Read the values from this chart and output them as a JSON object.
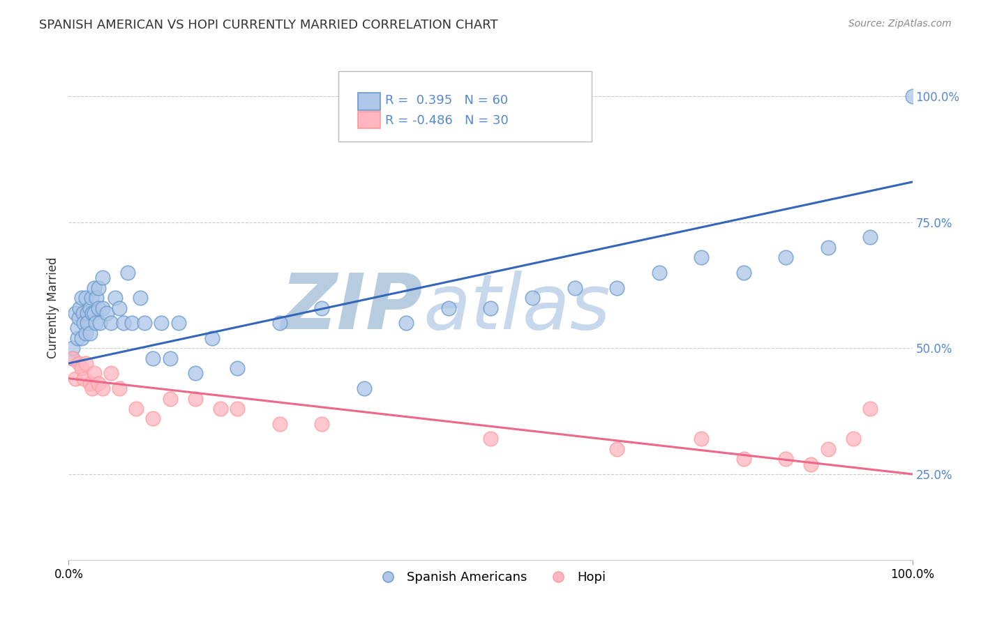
{
  "title": "SPANISH AMERICAN VS HOPI CURRENTLY MARRIED CORRELATION CHART",
  "source": "Source: ZipAtlas.com",
  "ylabel": "Currently Married",
  "right_ytick_labels": [
    "25.0%",
    "50.0%",
    "75.0%",
    "100.0%"
  ],
  "right_ytick_values": [
    0.25,
    0.5,
    0.75,
    1.0
  ],
  "xlim": [
    0.0,
    1.0
  ],
  "ylim": [
    0.08,
    1.08
  ],
  "blue_R": 0.395,
  "blue_N": 60,
  "pink_R": -0.486,
  "pink_N": 30,
  "blue_color": "#6699CC",
  "pink_color": "#FF9999",
  "blue_fill": "#AEC6E8",
  "pink_fill": "#FFB6C1",
  "trend_blue": "#3366BB",
  "trend_pink": "#EE6688",
  "watermark_zip": "ZIP",
  "watermark_atlas": "atlas",
  "watermark_color_zip": "#C8D8EC",
  "watermark_color_atlas": "#C8D8EC",
  "legend_label_blue": "Spanish Americans",
  "legend_label_pink": "Hopi",
  "blue_dots_x": [
    0.005,
    0.005,
    0.008,
    0.01,
    0.01,
    0.012,
    0.013,
    0.015,
    0.015,
    0.017,
    0.018,
    0.02,
    0.02,
    0.022,
    0.022,
    0.025,
    0.025,
    0.027,
    0.028,
    0.03,
    0.03,
    0.032,
    0.033,
    0.035,
    0.035,
    0.037,
    0.04,
    0.04,
    0.045,
    0.05,
    0.055,
    0.06,
    0.065,
    0.07,
    0.075,
    0.085,
    0.09,
    0.1,
    0.11,
    0.12,
    0.13,
    0.15,
    0.17,
    0.2,
    0.25,
    0.3,
    0.35,
    0.4,
    0.45,
    0.5,
    0.55,
    0.6,
    0.65,
    0.7,
    0.75,
    0.8,
    0.85,
    0.9,
    0.95,
    1.0
  ],
  "blue_dots_y": [
    0.48,
    0.5,
    0.57,
    0.52,
    0.54,
    0.56,
    0.58,
    0.52,
    0.6,
    0.57,
    0.55,
    0.6,
    0.53,
    0.57,
    0.55,
    0.58,
    0.53,
    0.6,
    0.57,
    0.62,
    0.57,
    0.55,
    0.6,
    0.58,
    0.62,
    0.55,
    0.58,
    0.64,
    0.57,
    0.55,
    0.6,
    0.58,
    0.55,
    0.65,
    0.55,
    0.6,
    0.55,
    0.48,
    0.55,
    0.48,
    0.55,
    0.45,
    0.52,
    0.46,
    0.55,
    0.58,
    0.42,
    0.55,
    0.58,
    0.58,
    0.6,
    0.62,
    0.62,
    0.65,
    0.68,
    0.65,
    0.68,
    0.7,
    0.72,
    1.0
  ],
  "pink_dots_x": [
    0.005,
    0.008,
    0.012,
    0.015,
    0.018,
    0.02,
    0.025,
    0.028,
    0.03,
    0.035,
    0.04,
    0.05,
    0.06,
    0.08,
    0.1,
    0.12,
    0.15,
    0.18,
    0.2,
    0.25,
    0.3,
    0.5,
    0.65,
    0.75,
    0.8,
    0.85,
    0.88,
    0.9,
    0.93,
    0.95
  ],
  "pink_dots_y": [
    0.48,
    0.44,
    0.47,
    0.46,
    0.44,
    0.47,
    0.43,
    0.42,
    0.45,
    0.43,
    0.42,
    0.45,
    0.42,
    0.38,
    0.36,
    0.4,
    0.4,
    0.38,
    0.38,
    0.35,
    0.35,
    0.32,
    0.3,
    0.32,
    0.28,
    0.28,
    0.27,
    0.3,
    0.32,
    0.38
  ],
  "blue_line_y_start": 0.47,
  "blue_line_y_end": 0.83,
  "pink_line_y_start": 0.44,
  "pink_line_y_end": 0.25,
  "grid_color": "#CCCCCC",
  "background_color": "#FFFFFF",
  "title_color": "#333333",
  "source_color": "#888888",
  "ytick_color": "#5588CC"
}
